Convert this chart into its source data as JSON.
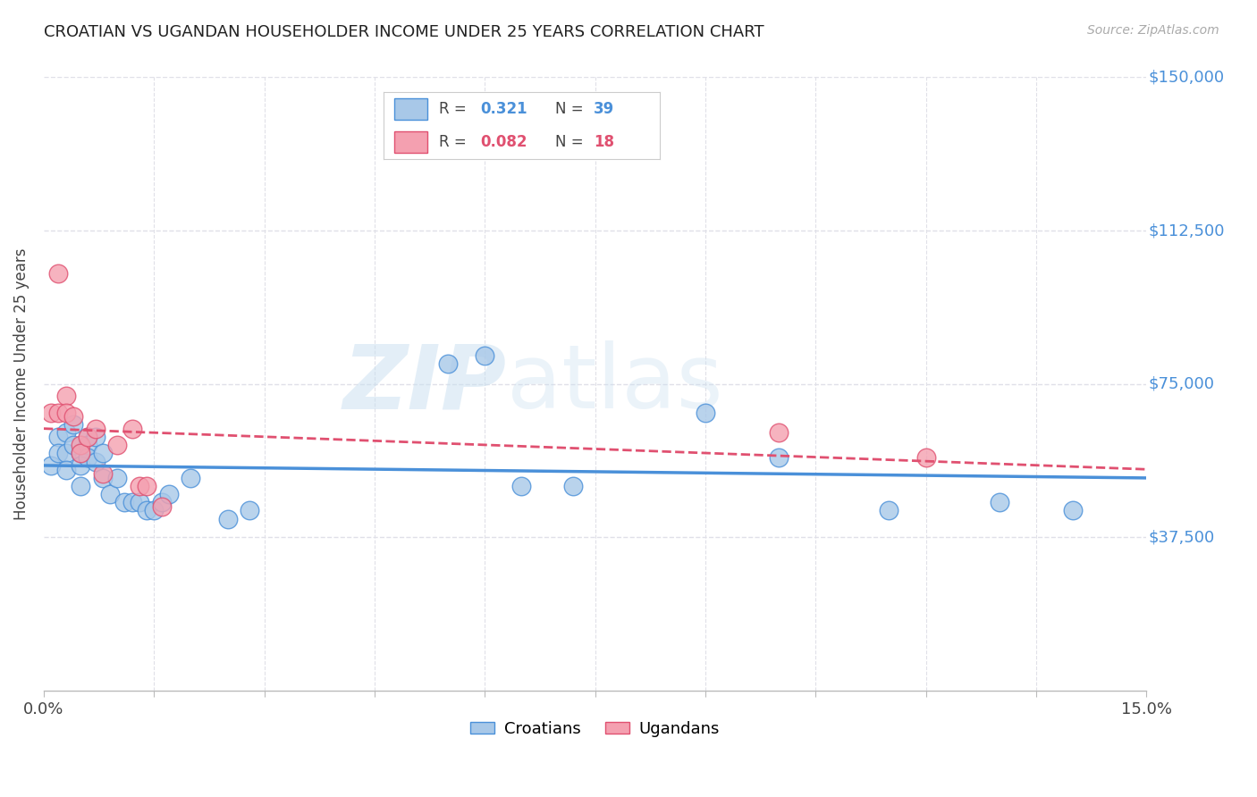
{
  "title": "CROATIAN VS UGANDAN HOUSEHOLDER INCOME UNDER 25 YEARS CORRELATION CHART",
  "source": "Source: ZipAtlas.com",
  "ylabel": "Householder Income Under 25 years",
  "xlim": [
    0,
    0.15
  ],
  "ylim": [
    0,
    150000
  ],
  "yticks": [
    37500,
    75000,
    112500,
    150000
  ],
  "ytick_labels": [
    "$37,500",
    "$75,000",
    "$112,500",
    "$150,000"
  ],
  "background_color": "#ffffff",
  "grid_color": "#e0e0e8",
  "croatian_color": "#a8c8e8",
  "ugandan_color": "#f4a0b0",
  "croatian_line_color": "#4a90d9",
  "ugandan_line_color": "#e05070",
  "watermark_zip": "ZIP",
  "watermark_atlas": "atlas",
  "legend_r_croatian": "0.321",
  "legend_n_croatian": "39",
  "legend_r_ugandan": "0.082",
  "legend_n_ugandan": "18",
  "croatian_x": [
    0.001,
    0.002,
    0.002,
    0.003,
    0.003,
    0.003,
    0.004,
    0.004,
    0.005,
    0.005,
    0.005,
    0.006,
    0.006,
    0.006,
    0.007,
    0.007,
    0.008,
    0.008,
    0.009,
    0.01,
    0.011,
    0.012,
    0.013,
    0.014,
    0.015,
    0.016,
    0.017,
    0.02,
    0.025,
    0.028,
    0.055,
    0.06,
    0.065,
    0.072,
    0.09,
    0.1,
    0.115,
    0.13,
    0.14
  ],
  "croatian_y": [
    55000,
    62000,
    58000,
    63000,
    58000,
    54000,
    65000,
    60000,
    58000,
    55000,
    50000,
    62000,
    60000,
    57000,
    62000,
    56000,
    58000,
    52000,
    48000,
    52000,
    46000,
    46000,
    46000,
    44000,
    44000,
    46000,
    48000,
    52000,
    42000,
    44000,
    80000,
    82000,
    50000,
    50000,
    68000,
    57000,
    44000,
    46000,
    44000
  ],
  "ugandan_x": [
    0.001,
    0.002,
    0.002,
    0.003,
    0.003,
    0.004,
    0.005,
    0.005,
    0.006,
    0.007,
    0.008,
    0.01,
    0.012,
    0.013,
    0.014,
    0.016,
    0.1,
    0.12
  ],
  "ugandan_y": [
    68000,
    102000,
    68000,
    72000,
    68000,
    67000,
    60000,
    58000,
    62000,
    64000,
    53000,
    60000,
    64000,
    50000,
    50000,
    45000,
    63000,
    57000
  ]
}
